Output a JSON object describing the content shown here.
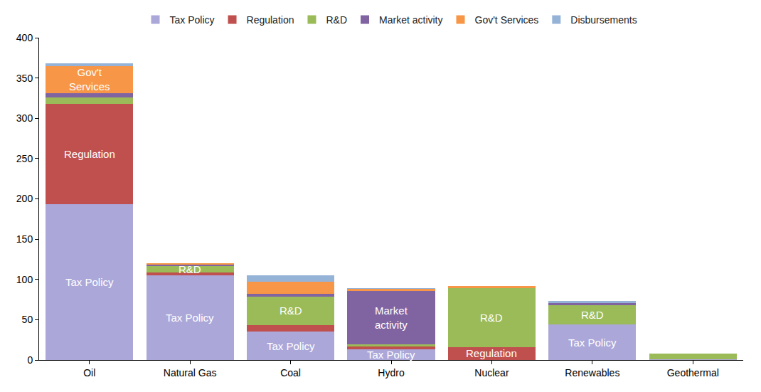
{
  "chart_data": {
    "type": "bar",
    "stacked": true,
    "grid": false,
    "legend": "top",
    "categories": [
      "Oil",
      "Natural Gas",
      "Coal",
      "Hydro",
      "Nuclear",
      "Renewables",
      "Geothermal"
    ],
    "series": [
      {
        "name": "Tax Policy",
        "color": "#aba7d9",
        "values": [
          193,
          105,
          35,
          13,
          0,
          44,
          1
        ]
      },
      {
        "name": "Regulation",
        "color": "#c0504d",
        "values": [
          125,
          4,
          8,
          4,
          16,
          0,
          0
        ]
      },
      {
        "name": "R&D",
        "color": "#9bbb59",
        "values": [
          8,
          8,
          36,
          2,
          73,
          24,
          7
        ]
      },
      {
        "name": "Market activity",
        "color": "#8064a2",
        "values": [
          5,
          1,
          3,
          67,
          0,
          3,
          0
        ]
      },
      {
        "name": "Gov't Services",
        "color": "#f79646",
        "values": [
          34,
          2,
          15,
          2,
          3,
          0,
          0
        ]
      },
      {
        "name": "Disbursements",
        "color": "#95b3d7",
        "values": [
          3,
          0,
          8,
          1,
          0,
          2,
          0
        ]
      }
    ],
    "ylim": [
      0,
      400
    ],
    "yticks": [
      0,
      50,
      100,
      150,
      200,
      250,
      300,
      350,
      400
    ],
    "annotations": [
      {
        "category": "Oil",
        "series": "Gov't Services",
        "text": "Gov't\nServices"
      },
      {
        "category": "Oil",
        "series": "Regulation",
        "text": "Regulation"
      },
      {
        "category": "Oil",
        "series": "Tax Policy",
        "text": "Tax Policy"
      },
      {
        "category": "Natural Gas",
        "series": "R&D",
        "text": "R&D"
      },
      {
        "category": "Natural Gas",
        "series": "Tax Policy",
        "text": "Tax Policy"
      },
      {
        "category": "Coal",
        "series": "R&D",
        "text": "R&D"
      },
      {
        "category": "Coal",
        "series": "Tax Policy",
        "text": "Tax Policy"
      },
      {
        "category": "Hydro",
        "series": "Market activity",
        "text": "Market\nactivity"
      },
      {
        "category": "Hydro",
        "series": "Tax Policy",
        "text": "Tax Policy"
      },
      {
        "category": "Nuclear",
        "series": "R&D",
        "text": "R&D"
      },
      {
        "category": "Nuclear",
        "series": "Regulation",
        "text": "Regulation"
      },
      {
        "category": "Renewables",
        "series": "R&D",
        "text": "R&D"
      },
      {
        "category": "Renewables",
        "series": "Tax Policy",
        "text": "Tax Policy"
      }
    ]
  }
}
